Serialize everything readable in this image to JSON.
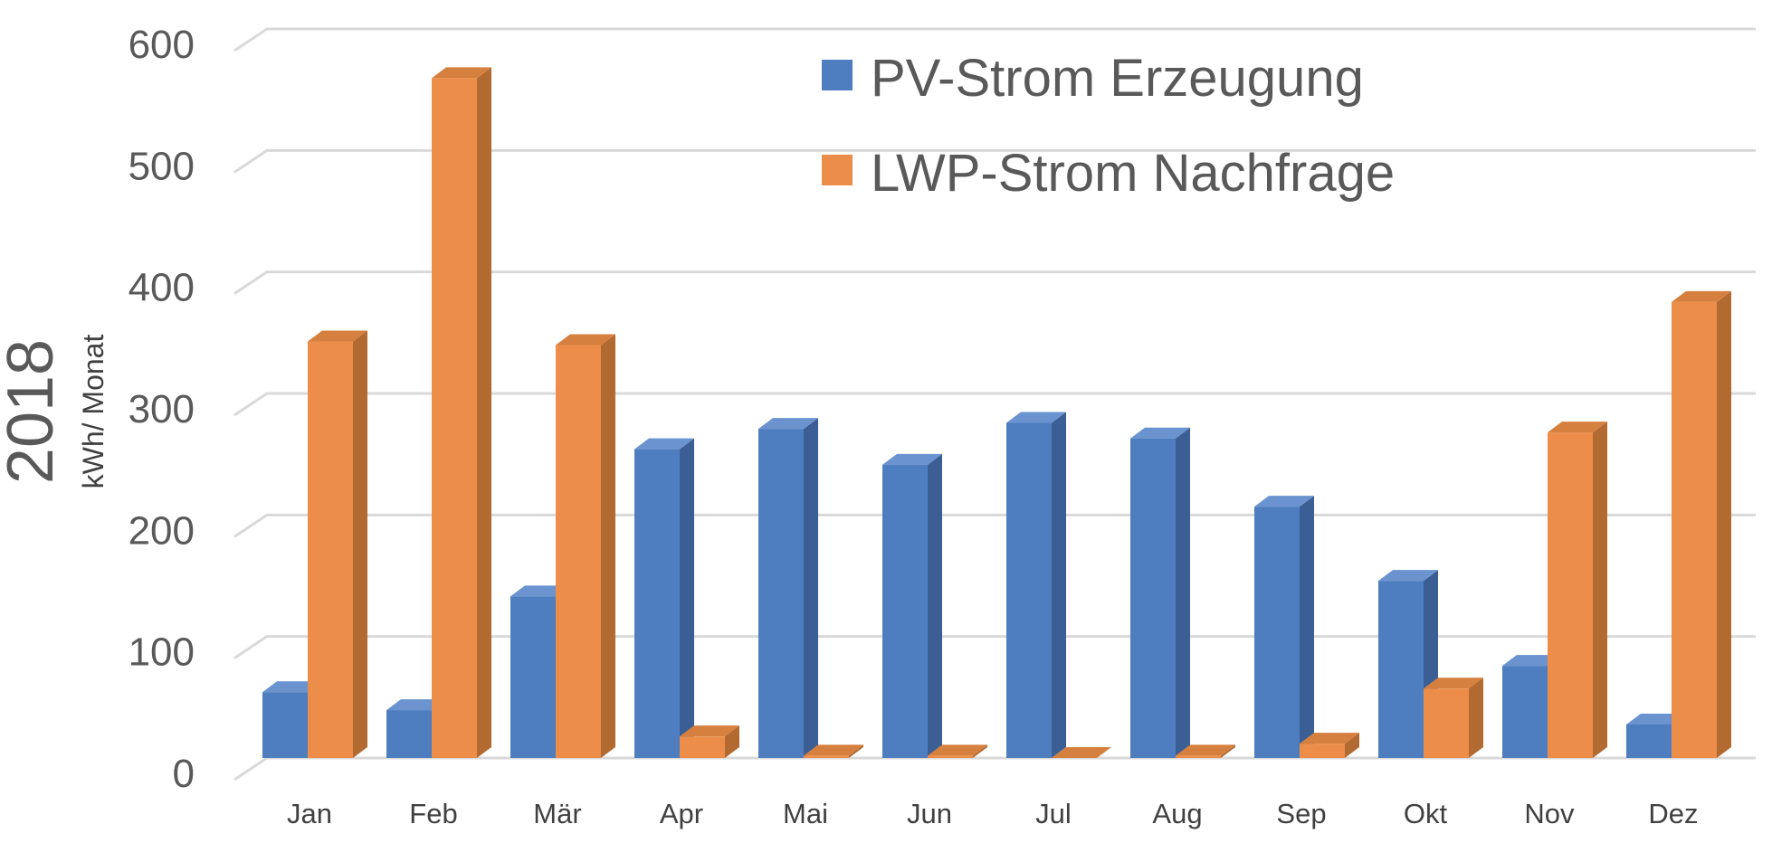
{
  "chart_data": {
    "type": "bar",
    "title": "",
    "side_label": "2018",
    "ylabel": "kWh/ Monat",
    "xlabel": "",
    "ylim": [
      0,
      600
    ],
    "yticks": [
      0,
      100,
      200,
      300,
      400,
      500,
      600
    ],
    "grid": true,
    "legend_position": "top-right",
    "categories": [
      "Jan",
      "Feb",
      "Mär",
      "Apr",
      "Mai",
      "Jun",
      "Jul",
      "Aug",
      "Sep",
      "Okt",
      "Nov",
      "Dez"
    ],
    "series": [
      {
        "name": "PV-Strom Erzeugung",
        "color": "#4f7ec0",
        "side_color": "#3b5f94",
        "top_color": "#6a93cf",
        "values": [
          55,
          40,
          135,
          258,
          275,
          245,
          280,
          267,
          210,
          148,
          77,
          28
        ]
      },
      {
        "name": "LWP-Strom Nachfrage",
        "color": "#ec8e4a",
        "side_color": "#b26a31",
        "top_color": "#d6803f",
        "values": [
          348,
          568,
          345,
          18,
          2,
          2,
          0,
          2,
          12,
          58,
          272,
          381
        ]
      }
    ]
  }
}
